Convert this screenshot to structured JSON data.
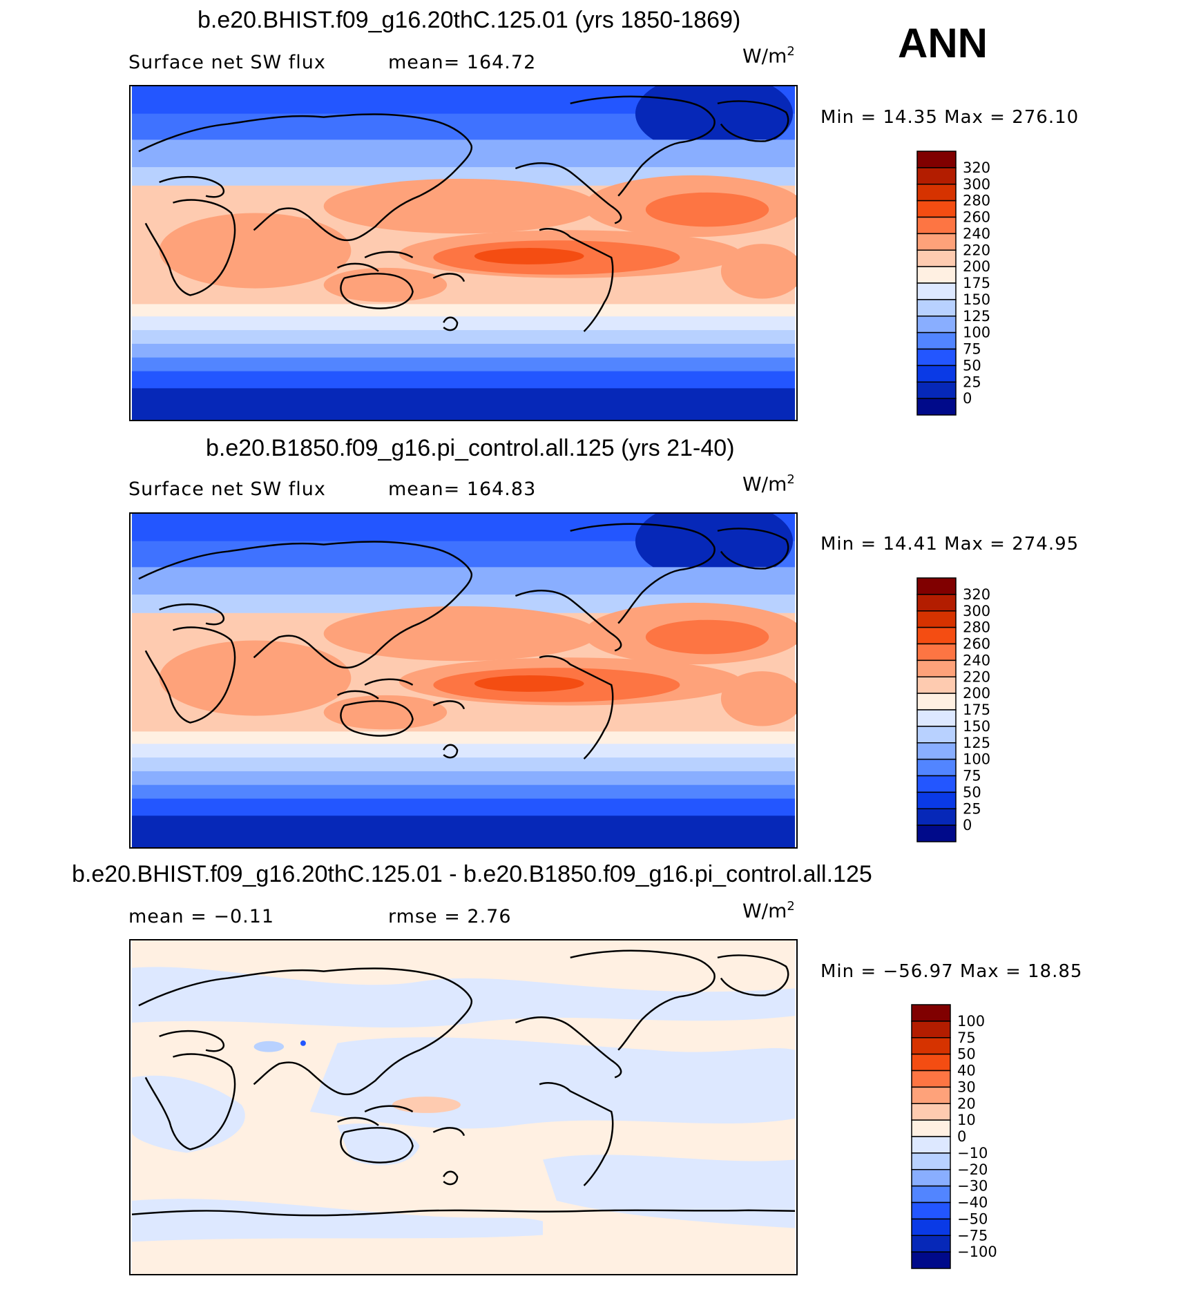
{
  "season": "ANN",
  "panels": [
    {
      "title": "b.e20.BHIST.f09_g16.20thC.125.01 (yrs 1850-1869)",
      "left_label": "Surface net SW flux",
      "right_label": "mean= 164.72",
      "units": "W/m",
      "units_exp": "2",
      "minmax": "Min =   14.35 Max  = 276.10",
      "kind": "abs"
    },
    {
      "title": "b.e20.B1850.f09_g16.pi_control.all.125 (yrs 21-40)",
      "left_label": "Surface net SW flux",
      "right_label": "mean= 164.83",
      "units": "W/m",
      "units_exp": "2",
      "minmax": "Min =   14.41 Max  = 274.95",
      "kind": "abs"
    },
    {
      "title": "b.e20.BHIST.f09_g16.20thC.125.01 - b.e20.B1850.f09_g16.pi_control.all.125",
      "left_label": "mean =   −0.11",
      "right_label": "rmse =     2.76",
      "units": "W/m",
      "units_exp": "2",
      "minmax": "Min = −56.97 Max =    18.85",
      "kind": "diff"
    }
  ],
  "colorbars": {
    "abs": {
      "labels": [
        "320",
        "300",
        "280",
        "260",
        "240",
        "220",
        "200",
        "175",
        "150",
        "125",
        "100",
        "75",
        "50",
        "25",
        "0"
      ],
      "colors": [
        "#800000",
        "#b31d00",
        "#d63300",
        "#f44d12",
        "#fd7543",
        "#fea27a",
        "#fecbb0",
        "#fff0e2",
        "#dde8ff",
        "#b8d1ff",
        "#89aeff",
        "#5285ff",
        "#2356ff",
        "#0a3ae6",
        "#0628b8",
        "#000a8a"
      ]
    },
    "diff": {
      "labels": [
        "100",
        "75",
        "50",
        "40",
        "30",
        "20",
        "10",
        "0",
        "−10",
        "−20",
        "−30",
        "−40",
        "−50",
        "−75",
        "−100"
      ],
      "colors": [
        "#800000",
        "#b31d00",
        "#d63300",
        "#f44d12",
        "#fd7543",
        "#fea27a",
        "#fecbb0",
        "#fff0e2",
        "#dde8ff",
        "#b8d1ff",
        "#89aeff",
        "#5285ff",
        "#2356ff",
        "#0a3ae6",
        "#0628b8",
        "#000a8a"
      ]
    }
  }
}
